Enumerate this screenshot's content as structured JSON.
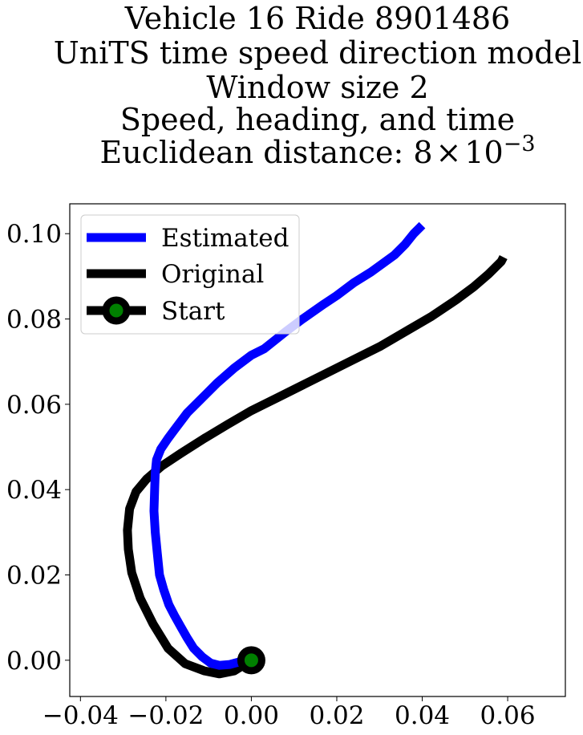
{
  "chart_data": {
    "type": "line",
    "title_lines": [
      "Vehicle 16 Ride 8901486",
      "UniTS time speed direction model",
      "Window size 2",
      "Speed, heading, and time",
      "Euclidean distance: "
    ],
    "distance": {
      "mantissa": "8",
      "times": "×",
      "base": "10",
      "exponent": "−3"
    },
    "xlabel": "",
    "ylabel": "",
    "xlim": [
      -0.0425,
      0.0735
    ],
    "ylim": [
      -0.0085,
      0.107
    ],
    "xticks": [
      {
        "value": -0.04,
        "label": "−0.04"
      },
      {
        "value": -0.02,
        "label": "−0.02"
      },
      {
        "value": 0.0,
        "label": "0.00"
      },
      {
        "value": 0.02,
        "label": "0.02"
      },
      {
        "value": 0.04,
        "label": "0.04"
      },
      {
        "value": 0.06,
        "label": "0.06"
      }
    ],
    "yticks": [
      {
        "value": 0.0,
        "label": "0.00"
      },
      {
        "value": 0.02,
        "label": "0.02"
      },
      {
        "value": 0.04,
        "label": "0.04"
      },
      {
        "value": 0.06,
        "label": "0.06"
      },
      {
        "value": 0.08,
        "label": "0.08"
      },
      {
        "value": 0.1,
        "label": "0.10"
      }
    ],
    "grid": false,
    "legend_position": "top-left",
    "series": [
      {
        "name": "Estimated",
        "color": "#0000ff",
        "x": [
          0.0,
          -0.0025,
          -0.005,
          -0.0075,
          -0.0095,
          -0.0115,
          -0.0135,
          -0.015,
          -0.0165,
          -0.018,
          -0.0193,
          -0.0205,
          -0.0215,
          -0.022,
          -0.0225,
          -0.0228,
          -0.0227,
          -0.0226,
          -0.0225,
          -0.0222,
          -0.0212,
          -0.0195,
          -0.018,
          -0.015,
          -0.0115,
          -0.008,
          -0.004,
          0.0,
          0.003,
          0.008,
          0.012,
          0.017,
          0.02,
          0.024,
          0.028,
          0.0335,
          0.036,
          0.038,
          0.04
        ],
        "y": [
          0.0,
          -0.0003,
          -0.001,
          -0.0012,
          -0.0007,
          0.0008,
          0.0028,
          0.0052,
          0.0078,
          0.0105,
          0.013,
          0.0165,
          0.02,
          0.025,
          0.03,
          0.035,
          0.038,
          0.041,
          0.044,
          0.047,
          0.0495,
          0.052,
          0.054,
          0.058,
          0.0615,
          0.065,
          0.0685,
          0.0715,
          0.073,
          0.077,
          0.08,
          0.0835,
          0.0855,
          0.0885,
          0.091,
          0.095,
          0.0975,
          0.1,
          0.102
        ]
      },
      {
        "name": "Original",
        "color": "#000000",
        "x": [
          0.0,
          -0.004,
          -0.0075,
          -0.011,
          -0.0155,
          -0.0195,
          -0.023,
          -0.026,
          -0.028,
          -0.0288,
          -0.029,
          -0.0285,
          -0.027,
          -0.0245,
          -0.021,
          -0.0165,
          -0.011,
          -0.0055,
          0.0,
          0.006,
          0.012,
          0.018,
          0.024,
          0.03,
          0.036,
          0.042,
          0.048,
          0.052,
          0.0555,
          0.0585,
          0.059
        ],
        "y": [
          0.0,
          -0.0025,
          -0.0032,
          -0.0025,
          -0.0008,
          0.0028,
          0.0085,
          0.0145,
          0.0205,
          0.026,
          0.0305,
          0.0355,
          0.0395,
          0.0425,
          0.0455,
          0.0485,
          0.052,
          0.0553,
          0.0585,
          0.0615,
          0.0645,
          0.0675,
          0.0705,
          0.0735,
          0.077,
          0.0805,
          0.0845,
          0.0875,
          0.0905,
          0.0935,
          0.0945
        ]
      }
    ],
    "start": {
      "name": "Start",
      "x": 0.0,
      "y": 0.0,
      "marker_face": "#008000",
      "marker_edge": "#000000"
    },
    "legend": [
      "Estimated",
      "Original",
      "Start"
    ]
  }
}
